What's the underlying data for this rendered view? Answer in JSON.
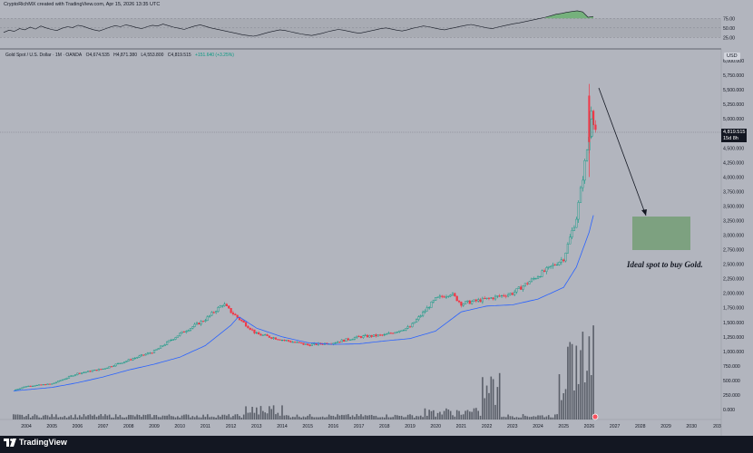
{
  "header": {
    "caption": "CryptoRichMX created with TradingView.com, Apr 15, 2026 13:35 UTC"
  },
  "symbol": {
    "name": "Gold Spot / U.S. Dollar · 1M · OANDA",
    "open": "O4,674.535",
    "high": "H4,871.380",
    "low": "L4,553.800",
    "close": "C4,819.515",
    "change": "+151.640 (+3.25%)",
    "currency": "USD"
  },
  "last_price": {
    "value": "4,819.515",
    "countdown": "15d 8h"
  },
  "annotation": "Ideal spot to buy Gold.",
  "footer": {
    "brand": "TradingView"
  },
  "colors": {
    "background": "#b2b5be",
    "up": "#089981",
    "down": "#f23645",
    "candle_up_fill": "#b2b5be",
    "ma_line": "#2962ff",
    "volume": "#131722",
    "buy_zone": "#6b9b6b",
    "text": "#131722",
    "rsi_fill": "#4caf50"
  },
  "oscillator": {
    "axis_labels": [
      "75.00",
      "50.00",
      "25.00"
    ],
    "levels": [
      75,
      50,
      25
    ],
    "values": [
      38,
      44,
      41,
      48,
      45,
      52,
      47,
      55,
      50,
      46,
      43,
      49,
      53,
      51,
      57,
      54,
      49,
      45,
      42,
      47,
      52,
      56,
      53,
      58,
      55,
      51,
      48,
      53,
      57,
      55,
      60,
      56,
      52,
      49,
      46,
      51,
      55,
      58,
      54,
      50,
      47,
      44,
      41,
      38,
      35,
      32,
      30,
      28,
      31,
      35,
      39,
      42,
      45,
      43,
      40,
      37,
      34,
      32,
      30,
      33,
      36,
      40,
      43,
      46,
      44,
      41,
      38,
      36,
      39,
      42,
      45,
      48,
      50,
      47,
      44,
      42,
      45,
      49,
      52,
      55,
      53,
      50,
      47,
      45,
      48,
      51,
      54,
      57,
      59,
      56,
      53,
      50,
      48,
      52,
      55,
      58,
      61,
      63,
      66,
      69,
      72,
      75,
      78,
      82,
      86,
      88,
      91,
      93,
      95,
      92,
      78,
      80
    ]
  },
  "chart_data": {
    "type": "candlestick",
    "x_axis_labels": [
      "2004",
      "2005",
      "2006",
      "2007",
      "2008",
      "2009",
      "2010",
      "2011",
      "2012",
      "2013",
      "2014",
      "2015",
      "2016",
      "2017",
      "2018",
      "2019",
      "2020",
      "2021",
      "2022",
      "2023",
      "2024",
      "2025",
      "2026",
      "2027",
      "2028",
      "2029",
      "2030",
      "203"
    ],
    "y_axis_labels": [
      "6,000.000",
      "5,750.000",
      "5,500.000",
      "5,250.000",
      "5,000.000",
      "4,750.000",
      "4,500.000",
      "4,250.000",
      "4,000.000",
      "3,750.000",
      "3,500.000",
      "3,250.000",
      "3,000.000",
      "2,750.000",
      "2,500.000",
      "2,250.000",
      "2,000.000",
      "1,750.000",
      "1,500.000",
      "1,250.000",
      "1,000.000",
      "750.000",
      "500.000",
      "250.000",
      "0.000"
    ],
    "y_range": [
      0,
      6000
    ],
    "x_range": [
      2003.5,
      2031.1
    ],
    "scale": "logarithmic",
    "series": [
      {
        "name": "Gold Spot / U.S. Dollar",
        "note": "yearly close anchors (approx.)",
        "x": [
          2003.5,
          2004,
          2005,
          2006,
          2007,
          2008,
          2009,
          2010,
          2011,
          2011.7,
          2012,
          2013,
          2014,
          2015,
          2016,
          2017,
          2018,
          2019,
          2020,
          2020.6,
          2021,
          2022,
          2023,
          2024,
          2025,
          2025.5,
          2026,
          2026.1,
          2026.2
        ],
        "values": [
          330,
          400,
          440,
          620,
          700,
          850,
          1000,
          1300,
          1550,
          1820,
          1680,
          1300,
          1200,
          1110,
          1150,
          1250,
          1280,
          1420,
          1900,
          2000,
          1820,
          1900,
          2000,
          2300,
          2600,
          3300,
          4700,
          5300,
          4819
        ]
      },
      {
        "name": "Moving average",
        "x": [
          2003.5,
          2005,
          2006,
          2007,
          2008,
          2009,
          2010,
          2011,
          2012,
          2012.3,
          2013,
          2014,
          2015,
          2016,
          2017,
          2018,
          2019,
          2020,
          2021,
          2022,
          2023,
          2024,
          2025,
          2025.5,
          2026,
          2026.2
        ],
        "values": [
          320,
          380,
          460,
          560,
          680,
          780,
          900,
          1100,
          1450,
          1600,
          1400,
          1250,
          1150,
          1120,
          1130,
          1180,
          1220,
          1350,
          1680,
          1780,
          1800,
          1900,
          2100,
          2450,
          3050,
          3400
        ]
      }
    ],
    "grid": false
  }
}
